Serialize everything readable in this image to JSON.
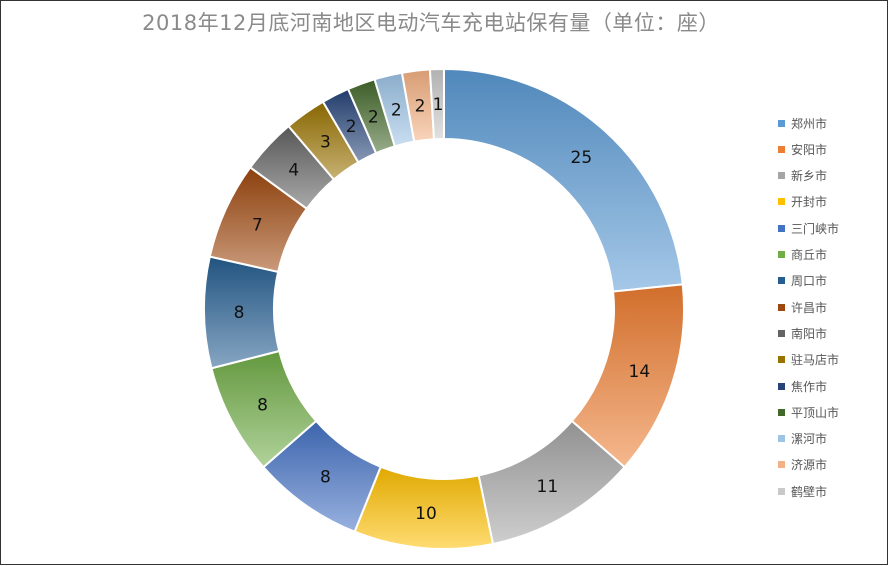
{
  "title": "2018年12月底河南地区电动汽车充电站保有量（单位：座）",
  "chart_data": {
    "type": "pie",
    "donut": true,
    "title": "2018年12月底河南地区电动汽车充电站保有量（单位：座）",
    "legend_position": "right",
    "categories": [
      "郑州市",
      "安阳市",
      "新乡市",
      "开封市",
      "三门峡市",
      "商丘市",
      "周口市",
      "许昌市",
      "南阳市",
      "驻马店市",
      "焦作市",
      "平顶山市",
      "漯河市",
      "济源市",
      "鹤壁市"
    ],
    "values": [
      25,
      14,
      11,
      10,
      8,
      8,
      8,
      7,
      4,
      3,
      2,
      2,
      2,
      2,
      1
    ],
    "colors": [
      "#5b9bd5",
      "#ed7d31",
      "#a5a5a5",
      "#ffc000",
      "#4472c4",
      "#70ad47",
      "#255e91",
      "#9e480e",
      "#636363",
      "#997300",
      "#264478",
      "#43682b",
      "#9dc3e6",
      "#f4b183",
      "#c9c9c9"
    ]
  }
}
